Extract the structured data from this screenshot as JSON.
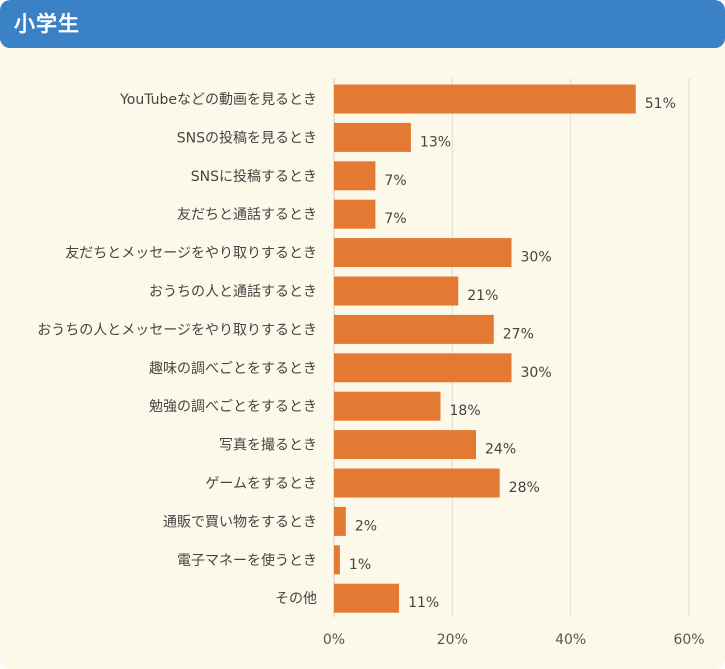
{
  "header": {
    "title": "小学生"
  },
  "colors": {
    "header_bg": "#3a82c5",
    "panel_bg": "#fdf9ea",
    "bar": "#e37932",
    "grid": "#e0ddd0"
  },
  "chart_data": {
    "type": "bar",
    "orientation": "horizontal",
    "categories": [
      "YouTubeなどの動画を見るとき",
      "SNSの投稿を見るとき",
      "SNSに投稿するとき",
      "友だちと通話するとき",
      "友だちとメッセージをやり取りするとき",
      "おうちの人と通話するとき",
      "おうちの人とメッセージをやり取りするとき",
      "趣味の調べごとをするとき",
      "勉強の調べごとをするとき",
      "写真を撮るとき",
      "ゲームをするとき",
      "通販で買い物をするとき",
      "電子マネーを使うとき",
      "その他"
    ],
    "values": [
      51,
      13,
      7,
      7,
      30,
      21,
      27,
      30,
      18,
      24,
      28,
      2,
      1,
      11
    ],
    "value_labels": [
      "51%",
      "13%",
      "7%",
      "7%",
      "30%",
      "21%",
      "27%",
      "30%",
      "18%",
      "24%",
      "28%",
      "2%",
      "1%",
      "11%"
    ],
    "xlim": [
      0,
      60
    ],
    "xticks": [
      0,
      20,
      40,
      60
    ],
    "xtick_labels": [
      "0%",
      "20%",
      "40%",
      "60%"
    ],
    "grid": true,
    "legend": "none"
  }
}
